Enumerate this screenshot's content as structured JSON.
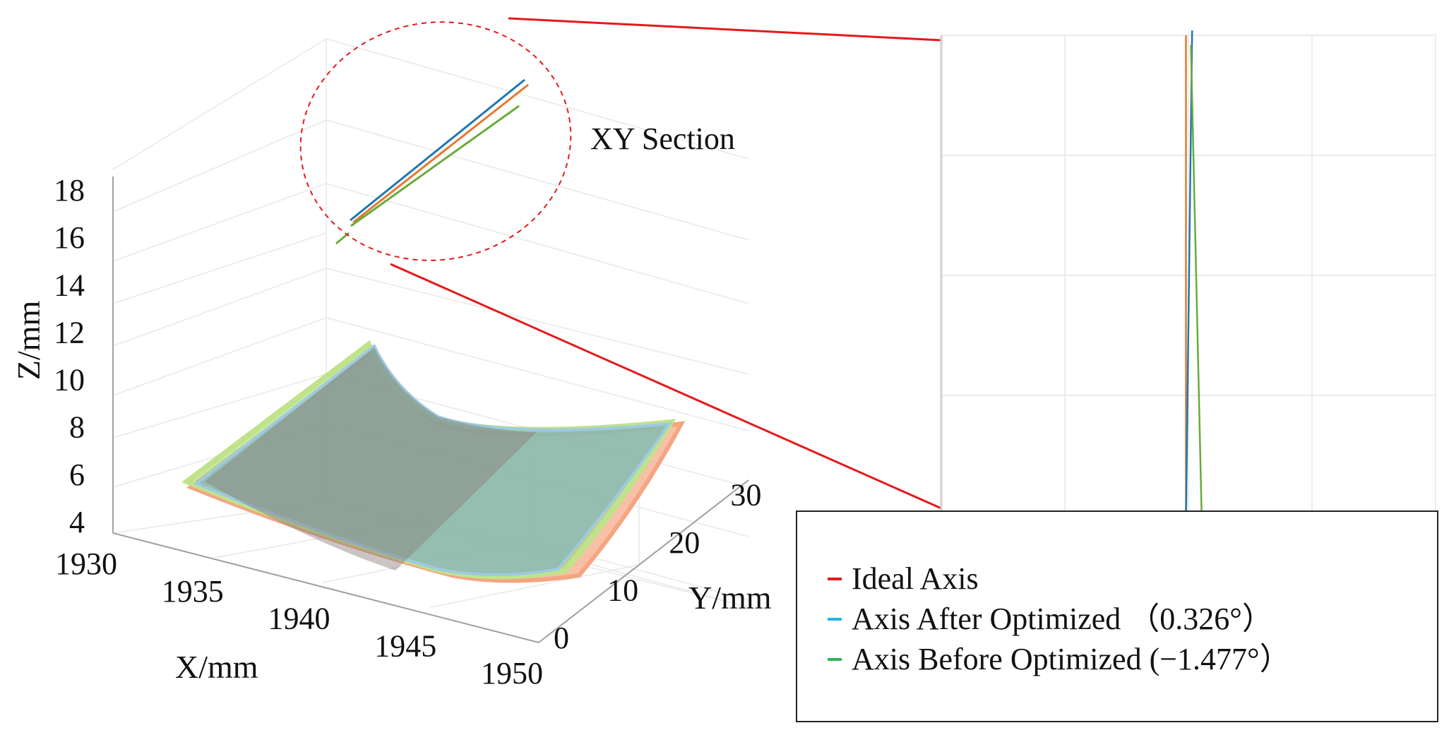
{
  "chart_data": [
    {
      "type": "surface3d",
      "xlabel": "X/mm",
      "ylabel": "Y/mm",
      "zlabel": "Z/mm",
      "xticks": [
        "1930",
        "1935",
        "1940",
        "1945",
        "1950"
      ],
      "yticks": [
        "0",
        "10",
        "20",
        "30"
      ],
      "zticks": [
        "4",
        "6",
        "8",
        "10",
        "12",
        "14",
        "16",
        "18"
      ],
      "xlim": [
        1930,
        1950
      ],
      "ylim": [
        0,
        30
      ],
      "zlim": [
        4,
        18
      ],
      "grid": true,
      "annotation": "XY Section",
      "series": [
        {
          "name": "Ideal Axis",
          "color": "#e41a1c",
          "surface_color": "#f4a582"
        },
        {
          "name": "Axis After Optimized",
          "angle_deg": 0.326,
          "color": "#1f9bd7",
          "surface_color": "#6baed6"
        },
        {
          "name": "Axis Before Optimized",
          "angle_deg": -1.477,
          "color": "#4daf4a",
          "surface_color": "#a6d96a"
        }
      ]
    },
    {
      "type": "line",
      "title": "",
      "grid": true,
      "lines": [
        {
          "name": "Ideal Axis",
          "x": [
            -0.1,
            -0.1
          ],
          "y": [
            0,
            1
          ]
        },
        {
          "name": "Axis After Optimized",
          "x": [
            0.15,
            -0.1
          ],
          "y": [
            1.01,
            0.0
          ]
        },
        {
          "name": "Axis Before Optimized",
          "x": [
            0.1,
            0.55
          ],
          "y": [
            0.98,
            -0.02
          ]
        }
      ]
    }
  ],
  "legend": {
    "items": [
      {
        "color": "#e41a1c",
        "label": "Ideal Axis"
      },
      {
        "color": "#1fb7e6",
        "label": "Axis After Optimized （0.326°）"
      },
      {
        "color": "#33b35a",
        "label": "Axis Before Optimized (−1.477°）"
      }
    ]
  },
  "colors": {
    "highlight_circle": "#e41a1c",
    "zoom_lines": "#e41a1c",
    "grid": "#e6e6e6",
    "axis": "#9e9e9e"
  }
}
